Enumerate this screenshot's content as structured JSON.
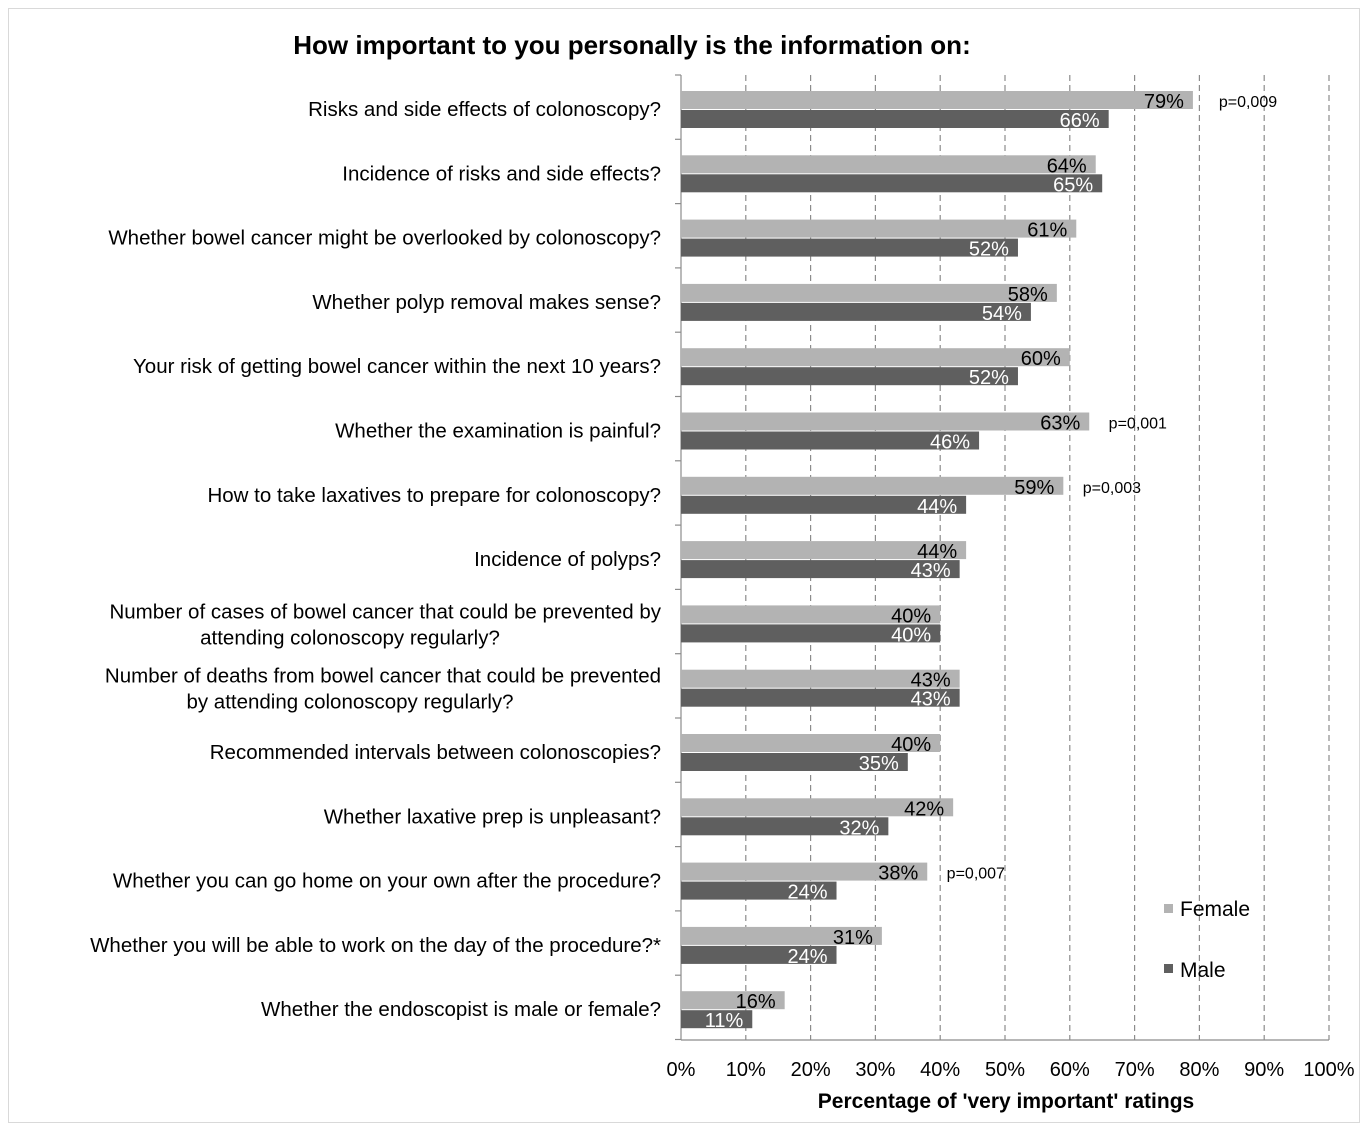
{
  "chart_data": {
    "type": "bar",
    "orientation": "horizontal",
    "title": "How important to you personally is the information on:",
    "xlabel": "Percentage of 'very important' ratings",
    "ylabel": "",
    "xlim": [
      0,
      100
    ],
    "x_ticks": [
      "0%",
      "10%",
      "20%",
      "30%",
      "40%",
      "50%",
      "60%",
      "70%",
      "80%",
      "90%",
      "100%"
    ],
    "grid": "vertical dashed",
    "legend_position": "right",
    "categories": [
      [
        "Risks and side effects of colonoscopy?"
      ],
      [
        "Incidence of risks and side effects?"
      ],
      [
        "Whether bowel cancer might be overlooked by colonoscopy?"
      ],
      [
        "Whether polyp removal makes sense?"
      ],
      [
        "Your risk of getting bowel cancer within the next 10 years?"
      ],
      [
        "Whether the examination is painful?"
      ],
      [
        "How to take laxatives to prepare for colonoscopy?"
      ],
      [
        "Incidence of polyps?"
      ],
      [
        "Number of cases of bowel cancer that could be prevented by",
        "attending colonoscopy regularly?"
      ],
      [
        "Number of deaths from bowel cancer that could be prevented",
        "by attending colonoscopy regularly?"
      ],
      [
        "Recommended intervals between colonoscopies?"
      ],
      [
        "Whether laxative prep is unpleasant?"
      ],
      [
        "Whether you can go home on your own after the procedure?"
      ],
      [
        "Whether you will be able to work on the day of the procedure?*"
      ],
      [
        "Whether the endoscopist is male or female?"
      ]
    ],
    "series": [
      {
        "name": "Female",
        "color": "#b3b3b3",
        "values": [
          79,
          64,
          61,
          58,
          60,
          63,
          59,
          44,
          40,
          43,
          40,
          42,
          38,
          31,
          16
        ],
        "labels": [
          "79%",
          "64%",
          "61%",
          "58%",
          "60%",
          "63%",
          "59%",
          "44%",
          "40%",
          "43%",
          "40%",
          "42%",
          "38%",
          "31%",
          "16%"
        ]
      },
      {
        "name": "Male",
        "color": "#5f5f5f",
        "values": [
          66,
          65,
          52,
          54,
          52,
          46,
          44,
          43,
          40,
          43,
          35,
          32,
          24,
          24,
          11
        ],
        "labels": [
          "66%",
          "65%",
          "52%",
          "54%",
          "52%",
          "46%",
          "44%",
          "43%",
          "40%",
          "43%",
          "35%",
          "32%",
          "24%",
          "24%",
          "11%"
        ]
      }
    ],
    "annotations": [
      {
        "category_index": 0,
        "text": "p=0,009",
        "at_value": 83
      },
      {
        "category_index": 5,
        "text": "p=0,001",
        "at_value": 66
      },
      {
        "category_index": 6,
        "text": "p=0,003",
        "at_value": 62
      },
      {
        "category_index": 12,
        "text": "p=0,007",
        "at_value": 41
      }
    ]
  }
}
